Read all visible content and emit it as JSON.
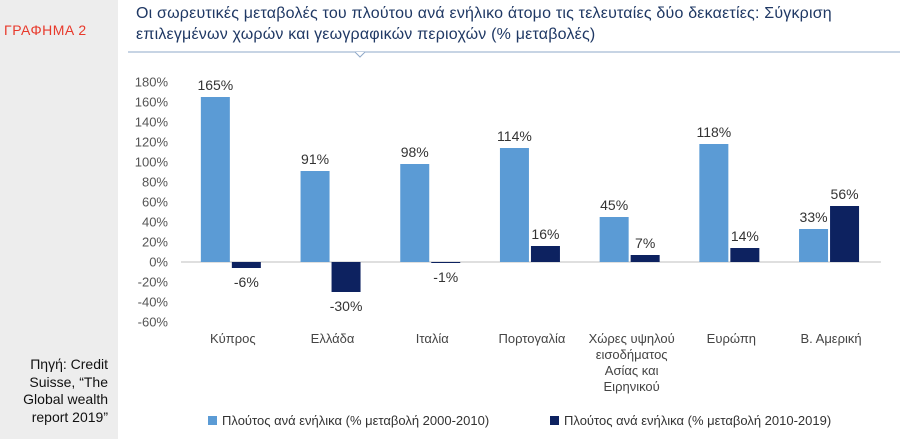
{
  "sidebar": {
    "graph_label": "ΓΡΑΦΗΜΑ 2",
    "source_lines": [
      "Πηγή: Credit",
      "Suisse, “The",
      "Global wealth",
      "report 2019”"
    ]
  },
  "title_lines": [
    "Οι σωρευτικές μεταβολές του πλούτου ανά ενήλικο άτομο τις τελευταίες δύο δεκαετίες: Σύγκριση",
    "επιλεγμένων χωρών και γεωγραφικών περιοχών (% μεταβολές)"
  ],
  "colors": {
    "series1": "#5b9bd5",
    "series2": "#0d2260",
    "title": "#1f3864",
    "graph_label": "#e8392b",
    "sidebar_bg": "#ededed"
  },
  "chart_data": {
    "type": "bar",
    "categories": [
      [
        "Κύπρος"
      ],
      [
        "Ελλάδα"
      ],
      [
        "Ιταλία"
      ],
      [
        "Πορτογαλία"
      ],
      [
        "Χώρες υψηλού",
        "εισοδήματος",
        "Ασίας και",
        "Ειρηνικού"
      ],
      [
        "Ευρώπη"
      ],
      [
        "Β. Αμερική"
      ]
    ],
    "series": [
      {
        "name": "Πλούτος ανά ενήλικα (% μεταβολή 2000-2010)",
        "values": [
          165,
          91,
          98,
          114,
          45,
          118,
          33
        ],
        "labels": [
          "165%",
          "91%",
          "98%",
          "114%",
          "45%",
          "118%",
          "33%"
        ]
      },
      {
        "name": "Πλούτος ανά ενήλικα (% μεταβολή 2010-2019)",
        "values": [
          -6,
          -30,
          -1,
          16,
          7,
          14,
          56
        ],
        "labels": [
          "-6%",
          "-30%",
          "-1%",
          "16%",
          "7%",
          "14%",
          "56%"
        ]
      }
    ],
    "ylim": [
      -60,
      180
    ],
    "yticks": [
      180,
      160,
      140,
      120,
      100,
      80,
      60,
      40,
      20,
      0,
      -20,
      -40,
      -60
    ],
    "ytick_labels": [
      "180%",
      "160%",
      "140%",
      "120%",
      "100%",
      "80%",
      "60%",
      "40%",
      "20%",
      "0%",
      "-20%",
      "-40%",
      "-60%"
    ],
    "legend_position": "bottom"
  }
}
